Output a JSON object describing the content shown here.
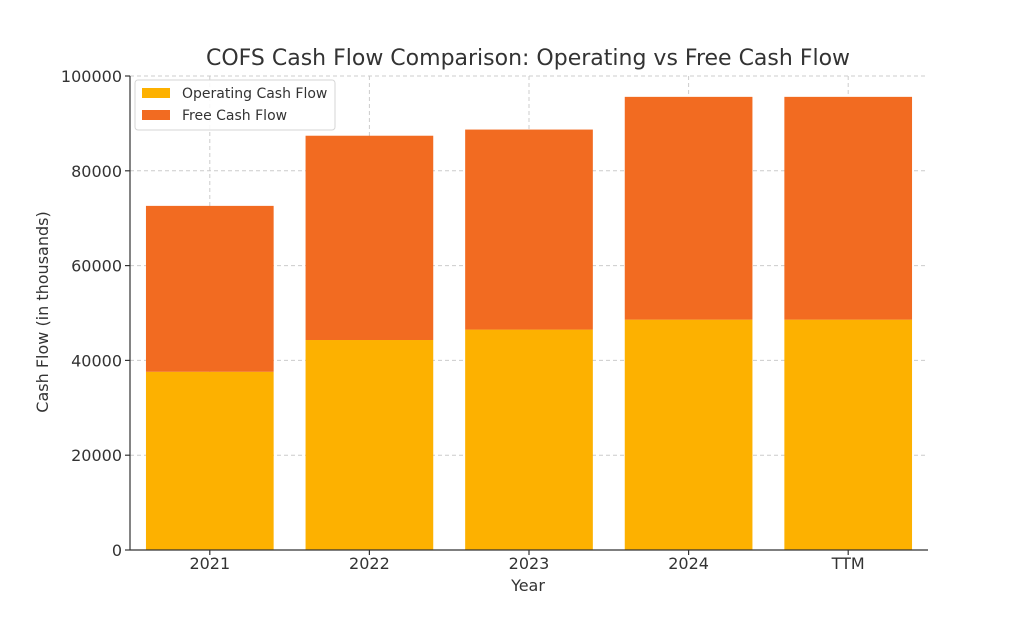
{
  "chart_data": {
    "type": "bar",
    "stacked": true,
    "title": "COFS Cash Flow Comparison: Operating vs Free Cash Flow",
    "xlabel": "Year",
    "ylabel": "Cash Flow (in thousands)",
    "categories": [
      "2021",
      "2022",
      "2023",
      "2024",
      "TTM"
    ],
    "ylim": [
      0,
      100000
    ],
    "yticks": [
      "0",
      "20000",
      "40000",
      "60000",
      "80000",
      "100000"
    ],
    "grid": true,
    "legend_position": "top-left",
    "series": [
      {
        "name": "Operating Cash Flow",
        "color": "#FDB100",
        "values": [
          37600,
          44300,
          46500,
          48600,
          48600
        ]
      },
      {
        "name": "Free Cash Flow",
        "color": "#F26B21",
        "values": [
          35000,
          43100,
          42200,
          47000,
          47000
        ]
      }
    ]
  }
}
